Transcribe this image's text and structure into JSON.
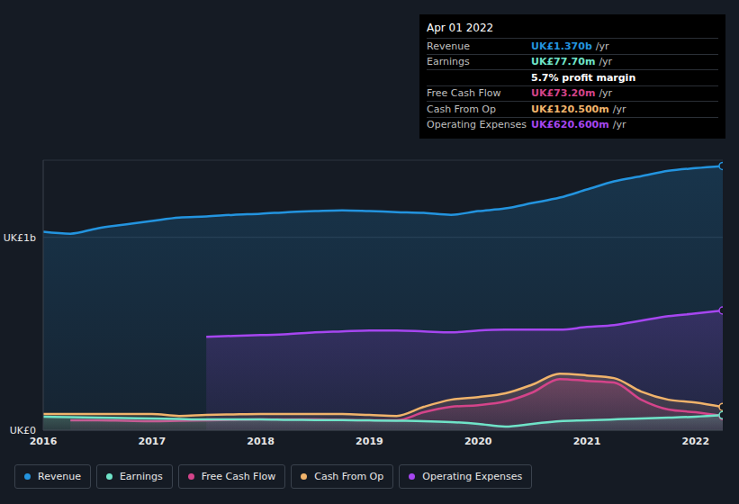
{
  "chart_data": {
    "type": "area",
    "x": [
      2016,
      2016.25,
      2016.5,
      2016.75,
      2017,
      2017.25,
      2017.5,
      2017.75,
      2018,
      2018.25,
      2018.5,
      2018.75,
      2019,
      2019.25,
      2019.5,
      2019.75,
      2020,
      2020.25,
      2020.5,
      2020.75,
      2021,
      2021.25,
      2021.5,
      2021.75,
      2022,
      2022.25
    ],
    "series": [
      {
        "name": "Revenue",
        "color": "#2394df",
        "values": [
          1029,
          1019,
          1047,
          1066,
          1085,
          1103,
          1108,
          1117,
          1122,
          1131,
          1136,
          1140,
          1136,
          1131,
          1127,
          1117,
          1136,
          1150,
          1178,
          1206,
          1248,
          1290,
          1317,
          1345,
          1359,
          1370
        ]
      },
      {
        "name": "Earnings",
        "color": "#6fe3c8",
        "values": [
          70,
          68,
          65,
          63,
          61,
          58,
          56,
          56,
          56,
          54,
          53,
          52,
          51,
          49,
          47,
          42,
          33,
          19,
          33,
          47,
          51,
          56,
          61,
          65,
          70,
          77.7
        ]
      },
      {
        "name": "Free Cash Flow",
        "color": "#d4448a",
        "values": [
          null,
          51,
          51,
          49,
          47,
          49,
          51,
          54,
          56,
          56,
          56,
          54,
          51,
          51,
          93,
          121,
          130,
          149,
          196,
          265,
          256,
          247,
          158,
          107,
          93,
          73.2
        ]
      },
      {
        "name": "Cash From Op",
        "color": "#f0b36b",
        "values": [
          84,
          84,
          84,
          84,
          84,
          74,
          79,
          82,
          84,
          84,
          84,
          84,
          79,
          74,
          121,
          158,
          172,
          191,
          237,
          293,
          284,
          270,
          200,
          158,
          144,
          120.5
        ]
      },
      {
        "name": "Operating Expenses",
        "color": "#a646f0",
        "values": [
          null,
          null,
          null,
          null,
          null,
          null,
          484,
          489,
          493,
          498,
          507,
          512,
          517,
          517,
          512,
          507,
          517,
          521,
          521,
          521,
          535,
          545,
          568,
          591,
          605,
          620.6
        ]
      }
    ],
    "xlim": [
      2016,
      2022.25
    ],
    "xticks": [
      2016,
      2017,
      2018,
      2019,
      2020,
      2021,
      2022
    ],
    "ylim": [
      0,
      1400
    ],
    "yticks": [
      {
        "value": 0,
        "label": "UK£0"
      },
      {
        "value": 1000,
        "label": "UK£1b"
      }
    ],
    "grid": true,
    "legend": "bottom",
    "annotations": [
      {
        "title": "Apr 01 2022",
        "rows": [
          {
            "label": "Revenue",
            "value": "UK£1.370b",
            "unit": "/yr"
          },
          {
            "label": "Earnings",
            "value": "UK£77.70m",
            "unit": "/yr"
          },
          {
            "value": "5.7% profit margin"
          },
          {
            "label": "Free Cash Flow",
            "value": "UK£73.20m",
            "unit": "/yr"
          },
          {
            "label": "Cash From Op",
            "value": "UK£120.500m",
            "unit": "/yr"
          },
          {
            "label": "Operating Expenses",
            "value": "UK£620.600m",
            "unit": "/yr"
          }
        ]
      }
    ]
  }
}
